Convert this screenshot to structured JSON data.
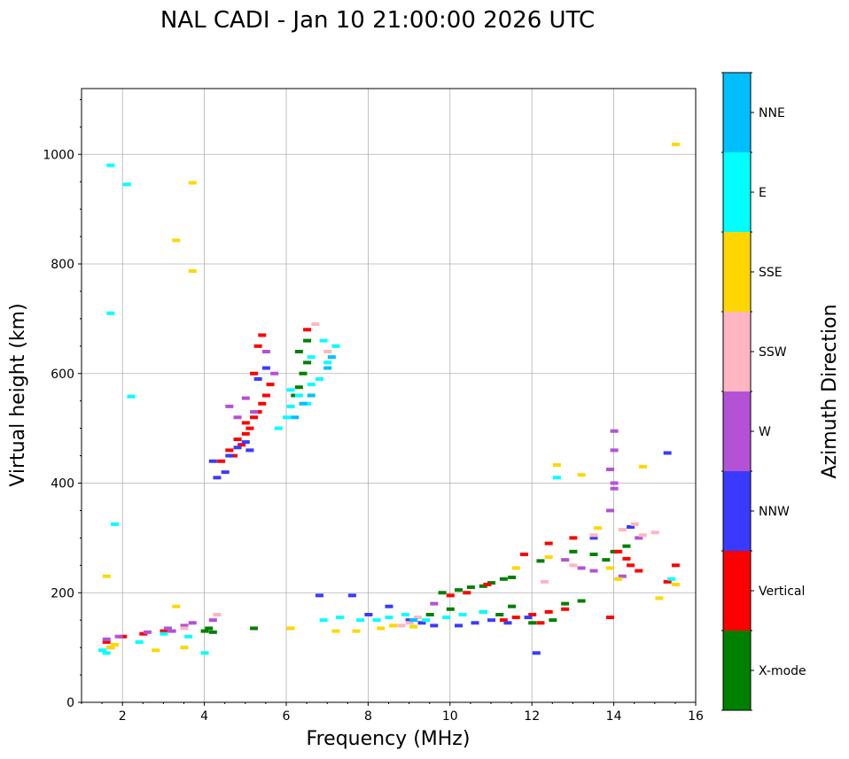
{
  "chart_data": {
    "type": "scatter",
    "title": "NAL CADI - Jan 10 21:00:00 2026 UTC",
    "xlabel": "Frequency (MHz)",
    "ylabel": "Virtual height (km)",
    "xlim": [
      1,
      16
    ],
    "ylim": [
      0,
      1120
    ],
    "xticks": [
      2,
      4,
      6,
      8,
      10,
      12,
      14,
      16
    ],
    "yticks": [
      0,
      200,
      400,
      600,
      800,
      1000
    ],
    "grid": true,
    "colorbar": {
      "label": "Azimuth Direction",
      "categories": [
        "X-mode",
        "Vertical",
        "NNW",
        "W",
        "SSW",
        "SSE",
        "E",
        "NNE"
      ],
      "colors": [
        "#008000",
        "#ff0000",
        "#3a3aff",
        "#b452d6",
        "#ffb6c1",
        "#ffd700",
        "#00ffff",
        "#00bfff"
      ]
    },
    "series": [
      {
        "name": "X-mode",
        "points": [
          [
            4.0,
            130
          ],
          [
            4.1,
            135
          ],
          [
            4.2,
            128
          ],
          [
            5.2,
            135
          ],
          [
            6.2,
            560
          ],
          [
            6.3,
            575
          ],
          [
            6.4,
            600
          ],
          [
            6.5,
            620
          ],
          [
            6.5,
            660
          ],
          [
            6.3,
            640
          ],
          [
            9.8,
            200
          ],
          [
            10.2,
            205
          ],
          [
            10.5,
            210
          ],
          [
            10.8,
            212
          ],
          [
            11.0,
            218
          ],
          [
            11.3,
            225
          ],
          [
            11.5,
            228
          ],
          [
            11.2,
            160
          ],
          [
            10.8,
            165
          ],
          [
            11.5,
            175
          ],
          [
            12.0,
            145
          ],
          [
            12.5,
            150
          ],
          [
            12.8,
            180
          ],
          [
            13.2,
            185
          ],
          [
            13.5,
            270
          ],
          [
            13.8,
            260
          ],
          [
            14.0,
            275
          ],
          [
            13.0,
            275
          ],
          [
            14.3,
            285
          ],
          [
            12.2,
            258
          ],
          [
            9.5,
            160
          ],
          [
            10.0,
            170
          ]
        ]
      },
      {
        "name": "Vertical",
        "points": [
          [
            1.6,
            110
          ],
          [
            1.7,
            100
          ],
          [
            2.0,
            120
          ],
          [
            2.5,
            125
          ],
          [
            3.0,
            130
          ],
          [
            4.4,
            440
          ],
          [
            4.6,
            460
          ],
          [
            4.8,
            480
          ],
          [
            4.9,
            470
          ],
          [
            5.0,
            490
          ],
          [
            5.1,
            500
          ],
          [
            5.2,
            520
          ],
          [
            5.3,
            530
          ],
          [
            5.4,
            545
          ],
          [
            5.5,
            560
          ],
          [
            5.6,
            580
          ],
          [
            5.2,
            600
          ],
          [
            5.3,
            650
          ],
          [
            5.4,
            670
          ],
          [
            4.7,
            450
          ],
          [
            5.0,
            510
          ],
          [
            6.5,
            680
          ],
          [
            10.0,
            195
          ],
          [
            10.4,
            200
          ],
          [
            10.9,
            215
          ],
          [
            11.3,
            150
          ],
          [
            11.6,
            155
          ],
          [
            12.0,
            160
          ],
          [
            12.2,
            145
          ],
          [
            12.4,
            165
          ],
          [
            12.8,
            170
          ],
          [
            13.0,
            300
          ],
          [
            14.4,
            250
          ],
          [
            14.6,
            240
          ],
          [
            15.5,
            250
          ],
          [
            15.3,
            220
          ],
          [
            11.8,
            270
          ],
          [
            12.4,
            290
          ],
          [
            13.9,
            155
          ],
          [
            14.1,
            275
          ],
          [
            14.3,
            262
          ]
        ]
      },
      {
        "name": "NNW",
        "points": [
          [
            4.2,
            440
          ],
          [
            4.3,
            410
          ],
          [
            4.5,
            420
          ],
          [
            4.6,
            450
          ],
          [
            4.8,
            465
          ],
          [
            5.0,
            475
          ],
          [
            5.1,
            460
          ],
          [
            5.3,
            590
          ],
          [
            5.5,
            610
          ],
          [
            6.8,
            195
          ],
          [
            7.6,
            195
          ],
          [
            8.5,
            175
          ],
          [
            8.0,
            160
          ],
          [
            9.0,
            150
          ],
          [
            9.3,
            145
          ],
          [
            9.6,
            140
          ],
          [
            10.2,
            140
          ],
          [
            10.6,
            145
          ],
          [
            11.0,
            150
          ],
          [
            11.4,
            145
          ],
          [
            11.9,
            155
          ],
          [
            12.1,
            90
          ],
          [
            15.3,
            455
          ],
          [
            13.5,
            300
          ],
          [
            14.4,
            320
          ]
        ]
      },
      {
        "name": "W",
        "points": [
          [
            1.6,
            115
          ],
          [
            1.9,
            120
          ],
          [
            2.6,
            128
          ],
          [
            3.1,
            135
          ],
          [
            3.5,
            140
          ],
          [
            3.7,
            145
          ],
          [
            4.2,
            150
          ],
          [
            4.6,
            540
          ],
          [
            4.8,
            520
          ],
          [
            5.0,
            555
          ],
          [
            5.2,
            530
          ],
          [
            5.5,
            640
          ],
          [
            5.7,
            600
          ],
          [
            3.2,
            130
          ],
          [
            9.6,
            180
          ],
          [
            13.2,
            245
          ],
          [
            14.0,
            400
          ],
          [
            13.9,
            425
          ],
          [
            14.0,
            460
          ],
          [
            14.0,
            495
          ],
          [
            13.9,
            350
          ],
          [
            14.0,
            390
          ],
          [
            14.6,
            300
          ],
          [
            14.2,
            230
          ],
          [
            12.8,
            260
          ],
          [
            13.5,
            240
          ]
        ]
      },
      {
        "name": "SSW",
        "points": [
          [
            3.5,
            135
          ],
          [
            4.3,
            160
          ],
          [
            6.7,
            690
          ],
          [
            7.0,
            640
          ],
          [
            8.8,
            140
          ],
          [
            9.0,
            145
          ],
          [
            9.2,
            155
          ],
          [
            12.3,
            220
          ],
          [
            13.0,
            250
          ],
          [
            13.5,
            305
          ],
          [
            14.2,
            315
          ],
          [
            14.5,
            325
          ],
          [
            14.7,
            305
          ],
          [
            15.0,
            310
          ]
        ]
      },
      {
        "name": "SSE",
        "points": [
          [
            1.7,
            100
          ],
          [
            1.8,
            105
          ],
          [
            2.8,
            95
          ],
          [
            3.5,
            100
          ],
          [
            3.3,
            175
          ],
          [
            3.3,
            843
          ],
          [
            3.7,
            787
          ],
          [
            3.7,
            948
          ],
          [
            1.6,
            230
          ],
          [
            6.1,
            135
          ],
          [
            7.2,
            130
          ],
          [
            7.7,
            130
          ],
          [
            8.3,
            135
          ],
          [
            8.6,
            140
          ],
          [
            9.1,
            138
          ],
          [
            12.6,
            433
          ],
          [
            13.2,
            415
          ],
          [
            14.7,
            430
          ],
          [
            15.1,
            190
          ],
          [
            15.5,
            215
          ],
          [
            15.5,
            1018
          ],
          [
            13.9,
            245
          ],
          [
            14.1,
            225
          ],
          [
            13.6,
            318
          ],
          [
            12.4,
            265
          ],
          [
            11.6,
            245
          ]
        ]
      },
      {
        "name": "E",
        "points": [
          [
            1.5,
            95
          ],
          [
            1.6,
            90
          ],
          [
            1.7,
            980
          ],
          [
            1.7,
            710
          ],
          [
            2.1,
            945
          ],
          [
            2.2,
            558
          ],
          [
            1.8,
            325
          ],
          [
            2.4,
            110
          ],
          [
            3.0,
            125
          ],
          [
            3.6,
            120
          ],
          [
            4.0,
            90
          ],
          [
            5.8,
            500
          ],
          [
            6.0,
            520
          ],
          [
            6.1,
            540
          ],
          [
            6.3,
            560
          ],
          [
            6.6,
            580
          ],
          [
            6.8,
            590
          ],
          [
            7.0,
            620
          ],
          [
            7.2,
            650
          ],
          [
            6.9,
            660
          ],
          [
            6.6,
            630
          ],
          [
            6.9,
            150
          ],
          [
            7.3,
            155
          ],
          [
            7.8,
            150
          ],
          [
            8.2,
            150
          ],
          [
            8.5,
            155
          ],
          [
            8.9,
            160
          ],
          [
            9.4,
            150
          ],
          [
            9.9,
            155
          ],
          [
            10.3,
            160
          ],
          [
            10.8,
            165
          ],
          [
            12.6,
            410
          ],
          [
            15.4,
            225
          ],
          [
            6.1,
            570
          ],
          [
            6.5,
            545
          ]
        ]
      },
      {
        "name": "NNE",
        "points": [
          [
            6.2,
            520
          ],
          [
            6.4,
            545
          ],
          [
            6.6,
            560
          ],
          [
            7.0,
            610
          ],
          [
            7.1,
            630
          ],
          [
            9.1,
            150
          ]
        ]
      }
    ]
  }
}
